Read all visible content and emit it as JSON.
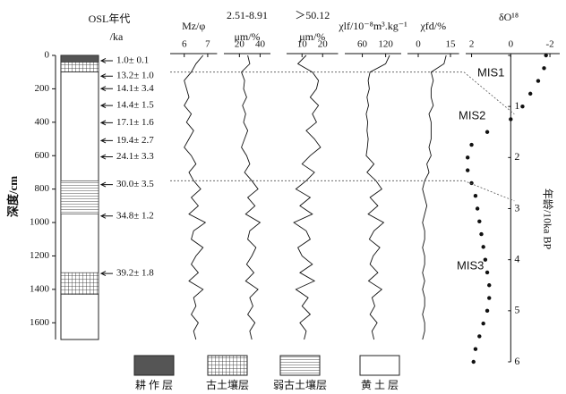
{
  "chart_data": {
    "type": "strat",
    "ylabel": "深度/cm",
    "ylim": [
      0,
      1700
    ],
    "yticks": [
      0,
      200,
      400,
      600,
      800,
      1000,
      1200,
      1400,
      1600
    ],
    "legend": [
      "耕 作 层",
      "古土壤层",
      "弱古土壤层",
      "黄 土 层"
    ],
    "layers": [
      {
        "kind": 0,
        "top": 0,
        "bottom": 40
      },
      {
        "kind": 1,
        "top": 40,
        "bottom": 100
      },
      {
        "kind": 2,
        "top": 750,
        "bottom": 950
      },
      {
        "kind": 1,
        "top": 1300,
        "bottom": 1430
      }
    ],
    "osl_title": [
      "OSL年代",
      "/ka"
    ],
    "osl": [
      {
        "depth": 32,
        "label": "1.0± 0.1"
      },
      {
        "depth": 124,
        "label": "13.2± 1.0"
      },
      {
        "depth": 199,
        "label": "14.1± 3.4"
      },
      {
        "depth": 300,
        "label": "14.4± 1.5"
      },
      {
        "depth": 403,
        "label": "17.1± 1.6"
      },
      {
        "depth": 510,
        "label": "19.4± 2.7"
      },
      {
        "depth": 607,
        "label": "24.1± 3.3"
      },
      {
        "depth": 773,
        "label": "30.0± 3.5"
      },
      {
        "depth": 961,
        "label": "34.8± 1.2"
      },
      {
        "depth": 1305,
        "label": "39.2± 1.8"
      }
    ],
    "depth": [
      0,
      50,
      100,
      150,
      200,
      250,
      300,
      350,
      400,
      450,
      500,
      550,
      600,
      650,
      700,
      750,
      800,
      850,
      900,
      950,
      1000,
      1050,
      1100,
      1150,
      1200,
      1250,
      1300,
      1350,
      1400,
      1450,
      1500,
      1550,
      1600,
      1650,
      1700
    ],
    "panels": [
      {
        "title": [
          "Mz/φ"
        ],
        "xlim": [
          5.4,
          7.4
        ],
        "xticks": [
          6,
          7
        ],
        "values": [
          6.8,
          6.5,
          6.3,
          6.0,
          6.1,
          6.2,
          6.0,
          6.3,
          6.1,
          6.4,
          6.2,
          6.0,
          6.3,
          6.5,
          6.2,
          6.4,
          6.7,
          6.3,
          6.6,
          6.2,
          6.9,
          6.4,
          6.3,
          6.8,
          6.5,
          6.3,
          6.6,
          6.2,
          6.8,
          6.4,
          6.5,
          6.3,
          6.6,
          6.4,
          6.5
        ]
      },
      {
        "title": [
          "2.51-8.91",
          "μm/%"
        ],
        "xlim": [
          5,
          50
        ],
        "xticks": [
          20,
          40
        ],
        "values": [
          28,
          30,
          22,
          25,
          24,
          27,
          23,
          26,
          24,
          28,
          25,
          22,
          27,
          30,
          25,
          32,
          38,
          28,
          35,
          26,
          40,
          30,
          28,
          36,
          32,
          27,
          34,
          26,
          38,
          30,
          33,
          28,
          35,
          30,
          32
        ]
      },
      {
        "title": [
          "＞50.12",
          "μm/%"
        ],
        "xlim": [
          2.5,
          27.5
        ],
        "xticks": [
          10,
          20
        ],
        "values": [
          12,
          8,
          15,
          18,
          17,
          14,
          18,
          15,
          17,
          12,
          16,
          19,
          14,
          10,
          16,
          12,
          7,
          14,
          9,
          15,
          6,
          12,
          14,
          8,
          10,
          15,
          9,
          16,
          7,
          13,
          10,
          14,
          9,
          12,
          11
        ]
      },
      {
        "title": [
          "χlf/10⁻⁸m³.kg⁻¹"
        ],
        "xlim": [
          15,
          160
        ],
        "xticks": [
          60,
          120
        ],
        "values": [
          130,
          120,
          80,
          75,
          78,
          72,
          76,
          70,
          74,
          72,
          75,
          73,
          70,
          90,
          72,
          95,
          110,
          80,
          100,
          75,
          115,
          90,
          78,
          105,
          88,
          80,
          100,
          76,
          110,
          85,
          92,
          80,
          98,
          85,
          90
        ]
      },
      {
        "title": [
          "χfd/%"
        ],
        "xlim": [
          -5,
          19
        ],
        "xticks": [
          0,
          15
        ],
        "values": [
          13,
          12,
          6,
          7,
          6,
          6,
          7,
          5,
          6,
          6,
          6,
          5,
          6,
          4,
          5,
          3,
          2,
          3,
          4,
          3,
          2,
          3,
          3,
          2,
          3,
          3,
          2,
          3,
          2,
          3,
          3,
          2,
          3,
          3,
          2
        ]
      }
    ],
    "isotope": {
      "title": "δO¹⁸",
      "xlim": [
        2.3,
        -2.5
      ],
      "xticks": [
        2,
        0,
        -2
      ],
      "y2label": "年龄/10ka BP",
      "y2lim": [
        0,
        6
      ],
      "y2ticks": [
        0,
        1,
        2,
        3,
        4,
        5,
        6
      ],
      "age": [
        0,
        0.25,
        0.5,
        0.75,
        1.0,
        1.25,
        1.5,
        1.75,
        2.0,
        2.25,
        2.5,
        2.75,
        3.0,
        3.25,
        3.5,
        3.75,
        4.0,
        4.25,
        4.5,
        4.75,
        5.0,
        5.25,
        5.5,
        5.75,
        6.0
      ],
      "values": [
        -1.8,
        -1.7,
        -1.4,
        -1.0,
        -0.6,
        0.0,
        1.2,
        2.0,
        2.2,
        2.2,
        2.0,
        1.8,
        1.7,
        1.6,
        1.5,
        1.4,
        1.3,
        1.2,
        1.1,
        1.1,
        1.2,
        1.4,
        1.6,
        1.8,
        1.9
      ],
      "mis": [
        "MIS1",
        "MIS2",
        "MIS3"
      ]
    },
    "boundaries": [
      {
        "depth": 100,
        "age": 1.15
      },
      {
        "depth": 750,
        "age": 2.85
      }
    ]
  }
}
